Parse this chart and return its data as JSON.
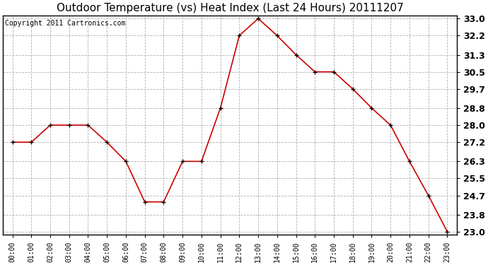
{
  "title": "Outdoor Temperature (vs) Heat Index (Last 24 Hours) 20111207",
  "copyright": "Copyright 2011 Cartronics.com",
  "x_labels": [
    "00:00",
    "01:00",
    "02:00",
    "03:00",
    "04:00",
    "05:00",
    "06:00",
    "07:00",
    "08:00",
    "09:00",
    "10:00",
    "11:00",
    "12:00",
    "13:00",
    "14:00",
    "15:00",
    "16:00",
    "17:00",
    "18:00",
    "19:00",
    "20:00",
    "21:00",
    "22:00",
    "23:00"
  ],
  "y_values": [
    27.2,
    27.2,
    28.0,
    28.0,
    28.0,
    27.2,
    26.3,
    24.4,
    24.4,
    26.3,
    26.3,
    28.8,
    32.2,
    33.0,
    32.2,
    31.3,
    30.5,
    30.5,
    29.7,
    28.8,
    28.0,
    26.3,
    24.7,
    23.0
  ],
  "y_min": 23.0,
  "y_max": 33.0,
  "y_ticks": [
    23.0,
    23.8,
    24.7,
    25.5,
    26.3,
    27.2,
    28.0,
    28.8,
    29.7,
    30.5,
    31.3,
    32.2,
    33.0
  ],
  "line_color": "#cc0000",
  "background_color": "#ffffff",
  "grid_color": "#b0b0b0",
  "title_fontsize": 11,
  "copyright_fontsize": 7,
  "tick_fontsize": 9,
  "xtick_fontsize": 7
}
